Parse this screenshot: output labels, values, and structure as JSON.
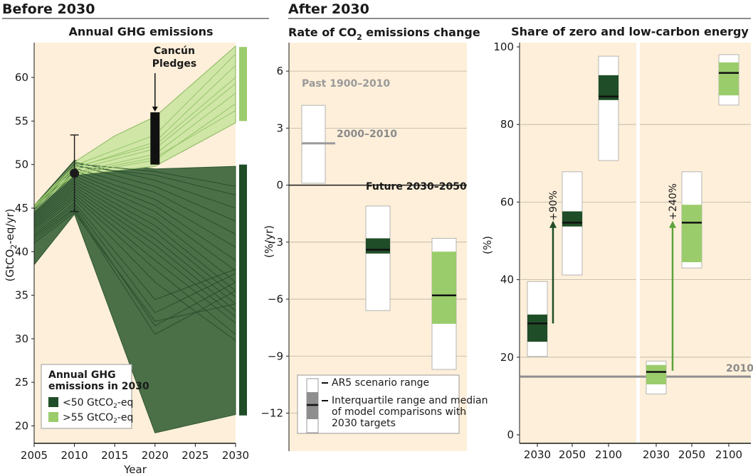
{
  "headings": {
    "before": "Before 2030",
    "after": "After 2030"
  },
  "colors": {
    "panel_bg": "#fdefd9",
    "dark_green": "#1f4d27",
    "light_green": "#9bcc6b",
    "band_dark": "#4b7048",
    "band_light": "#cfe6a6",
    "grey": "#8e8e8e"
  },
  "chart_data": [
    {
      "type": "area",
      "title": "Annual GHG emissions",
      "xlabel": "Year",
      "ylabel": "(GtCO2-eq/yr)",
      "xlim": [
        2005,
        2030
      ],
      "ylim": [
        18,
        64
      ],
      "x_ticks": [
        2005,
        2010,
        2015,
        2020,
        2025,
        2030
      ],
      "y_ticks": [
        20,
        25,
        30,
        35,
        40,
        45,
        50,
        55,
        60
      ],
      "bands": [
        {
          "name": "<50 GtCO2-eq",
          "color": "#4b7048",
          "upper": [
            [
              2005,
              45.3
            ],
            [
              2010,
              50.5
            ],
            [
              2020,
              49.5
            ],
            [
              2030,
              49.8
            ]
          ],
          "lower": [
            [
              2030,
              21.3
            ],
            [
              2020,
              19.2
            ],
            [
              2010,
              44.3
            ],
            [
              2005,
              38.5
            ]
          ]
        },
        {
          "name": ">55 GtCO2-eq",
          "color": "#cfe6a6",
          "upper": [
            [
              2005,
              45.3
            ],
            [
              2010,
              50.3
            ],
            [
              2015,
              53.3
            ],
            [
              2020,
              55.5
            ],
            [
              2030,
              63.6
            ]
          ],
          "lower": [
            [
              2030,
              54.8
            ],
            [
              2020,
              49.8
            ],
            [
              2010,
              48.8
            ],
            [
              2005,
              44.6
            ]
          ]
        }
      ],
      "lines_low": [
        [
          45.3,
          50.3,
          48.2,
          45.0
        ],
        [
          45.0,
          50.0,
          47.5,
          43.5
        ],
        [
          44.8,
          49.6,
          46.8,
          42.0
        ],
        [
          44.6,
          49.3,
          46.0,
          40.5
        ],
        [
          44.4,
          49.0,
          45.3,
          39.0
        ],
        [
          44.2,
          48.7,
          44.6,
          37.8
        ],
        [
          44.0,
          48.4,
          43.8,
          36.5
        ],
        [
          43.8,
          48.1,
          43.0,
          35.5
        ],
        [
          43.6,
          47.8,
          42.3,
          34.8
        ],
        [
          43.4,
          47.5,
          41.5,
          34.0
        ],
        [
          43.2,
          47.2,
          40.8,
          33.2
        ],
        [
          43.0,
          46.9,
          40.0,
          32.5
        ],
        [
          42.8,
          46.6,
          39.0,
          31.8
        ],
        [
          42.6,
          46.3,
          38.0,
          30.5
        ],
        [
          42.3,
          46.0,
          36.5,
          29.8
        ],
        [
          42.0,
          45.6,
          34.5,
          38.0
        ],
        [
          41.8,
          45.3,
          33.0,
          37.5
        ],
        [
          41.6,
          45.0,
          31.5,
          36.5
        ],
        [
          41.3,
          44.8,
          30.5,
          35.5
        ],
        [
          41.0,
          44.5,
          32.0,
          34.0
        ],
        [
          44.9,
          49.8,
          48.8,
          46.5
        ],
        [
          45.1,
          50.1,
          49.2,
          47.5
        ]
      ],
      "lines_high": [
        [
          45.0,
          48.9,
          50.5,
          57.0
        ],
        [
          45.1,
          49.1,
          51.2,
          58.2
        ],
        [
          45.2,
          49.4,
          51.8,
          59.3
        ],
        [
          45.3,
          49.7,
          52.2,
          60.0
        ],
        [
          45.0,
          49.0,
          50.8,
          56.2
        ],
        [
          45.2,
          49.6,
          52.6,
          61.4
        ],
        [
          45.3,
          49.9,
          53.4,
          62.7
        ]
      ],
      "bars": [
        {
          "name": "<50 GtCO2-eq",
          "range": [
            21.2,
            50.0
          ]
        },
        {
          "name": ">55 GtCO2-eq",
          "range": [
            55.0,
            63.5
          ]
        }
      ],
      "point_2010": {
        "x": 2010,
        "value": 49.0,
        "range": [
          44.6,
          53.4
        ]
      },
      "pledges": {
        "label": [
          "Cancún",
          "Pledges"
        ],
        "x": 2020,
        "range": [
          50.0,
          56.0
        ]
      },
      "legend": {
        "title": [
          "Annual GHG",
          "emissions in 2030"
        ],
        "entries": [
          "<50 GtCO2-eq",
          ">55 GtCO2-eq"
        ]
      }
    },
    {
      "type": "bar",
      "title": "Rate of CO2 emissions change",
      "ylabel": "(%/yr)",
      "ylim": [
        -14,
        7.5
      ],
      "y_ticks": [
        6,
        3,
        0,
        -3,
        -6,
        -9,
        -12
      ],
      "past": {
        "label": "Past 1900–2010",
        "range": [
          0.1,
          4.2
        ],
        "median_label": "2000–2010",
        "median": 2.2
      },
      "future_label": "Future 2030–2050",
      "boxes": [
        {
          "group": "<50 GtCO2-eq",
          "range": [
            -6.6,
            -1.1
          ],
          "iqr": [
            -3.6,
            -2.8
          ],
          "median": -3.4
        },
        {
          "group": ">55 GtCO2-eq",
          "range": [
            -9.7,
            -2.8
          ],
          "iqr": [
            -7.3,
            -3.5
          ],
          "median": -5.8
        }
      ],
      "legend": [
        "AR5 scenario range",
        "Interquartile range and median",
        "of model comparisons with",
        "2030 targets"
      ]
    },
    {
      "type": "bar",
      "title": "Share of zero and low-carbon energy",
      "ylabel": "(%)",
      "ylim": [
        0,
        100
      ],
      "y_ticks": [
        0,
        20,
        40,
        60,
        80,
        100
      ],
      "reference": {
        "label": "2010",
        "value": 15
      },
      "groups": [
        {
          "name": "<50 GtCO2-eq",
          "color": "#1f4d27",
          "boxes": [
            {
              "category": "2030",
              "range": [
                20.2,
                39.5
              ],
              "iqr": [
                24.0,
                31.0
              ],
              "median": 28.7
            },
            {
              "category": "2050",
              "range": [
                41.2,
                67.8
              ],
              "iqr": [
                53.7,
                57.6
              ],
              "median": 54.7
            },
            {
              "category": "2100",
              "range": [
                70.7,
                97.6
              ],
              "iqr": [
                86.3,
                92.7
              ],
              "median": 87.2
            }
          ],
          "increase_label": "+90%"
        },
        {
          "name": ">55 GtCO2-eq",
          "color": "#9bcc6b",
          "boxes": [
            {
              "category": "2030",
              "range": [
                10.5,
                19.0
              ],
              "iqr": [
                13.0,
                18.0
              ],
              "median": 16.2
            },
            {
              "category": "2050",
              "range": [
                43.0,
                67.8
              ],
              "iqr": [
                44.5,
                59.3
              ],
              "median": 54.7
            },
            {
              "category": "2100",
              "range": [
                85.0,
                98.0
              ],
              "iqr": [
                87.5,
                96.0
              ],
              "median": 93.3
            }
          ],
          "increase_label": "+240%"
        }
      ],
      "categories": [
        "2030",
        "2050",
        "2100"
      ]
    }
  ]
}
